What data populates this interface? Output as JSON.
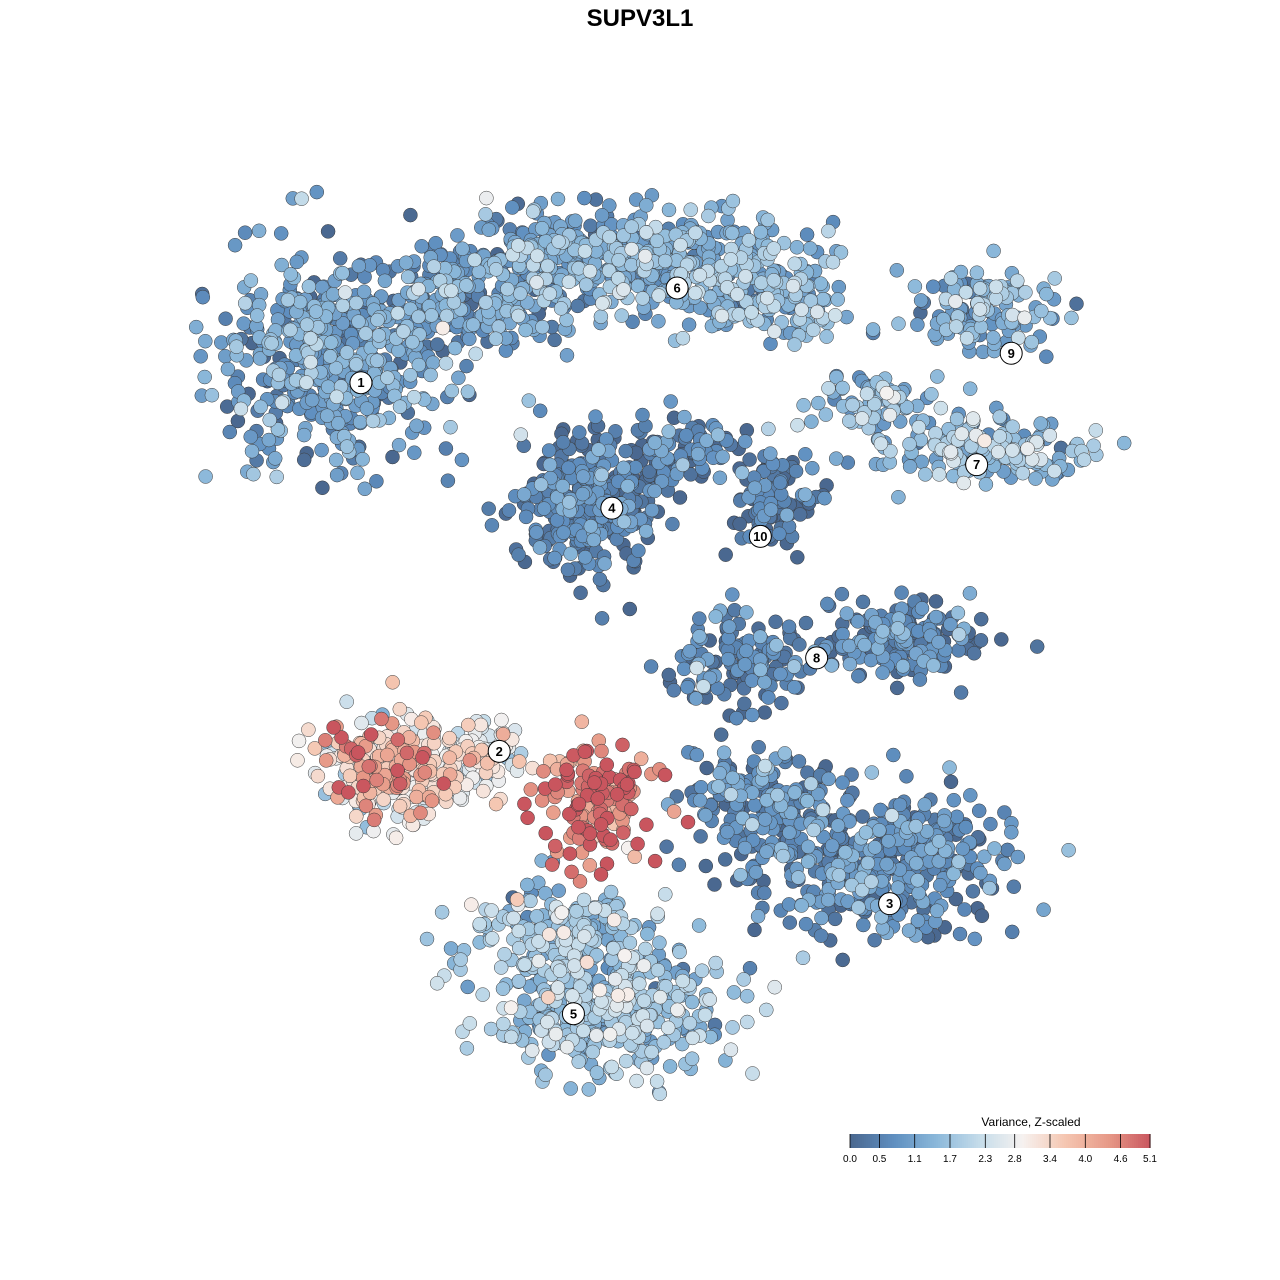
{
  "chart_data": {
    "type": "scatter",
    "title": "SUPV3L1",
    "xlabel": "",
    "ylabel": "",
    "xlim": [
      0,
      1
    ],
    "ylim": [
      0,
      1
    ],
    "grid": false,
    "legend_placement": "bottom-right",
    "colorbar": {
      "title": "Variance, Z-scaled",
      "min": 0.0,
      "max": 5.1,
      "ticks": [
        "0.0",
        "0.5",
        "1.1",
        "1.7",
        "2.3",
        "2.8",
        "3.4",
        "4.0",
        "4.6",
        "5.1"
      ],
      "tick_values": [
        0.0,
        0.5,
        1.1,
        1.7,
        2.3,
        2.8,
        3.4,
        4.0,
        4.6,
        5.1
      ],
      "colors": [
        "#4a6890",
        "#5f8fc0",
        "#8bb8da",
        "#c5dcea",
        "#f6f2f0",
        "#f5c6b1",
        "#e79a88",
        "#c9555e"
      ]
    },
    "clusters": [
      {
        "label": "1",
        "x": 0.282,
        "y": 0.701,
        "mean": 1.0
      },
      {
        "label": "2",
        "x": 0.39,
        "y": 0.413,
        "mean": 2.8
      },
      {
        "label": "3",
        "x": 0.695,
        "y": 0.294,
        "mean": 0.6
      },
      {
        "label": "4",
        "x": 0.478,
        "y": 0.603,
        "mean": 0.4
      },
      {
        "label": "5",
        "x": 0.448,
        "y": 0.208,
        "mean": 1.6
      },
      {
        "label": "6",
        "x": 0.529,
        "y": 0.775,
        "mean": 1.3
      },
      {
        "label": "7",
        "x": 0.763,
        "y": 0.637,
        "mean": 1.5
      },
      {
        "label": "8",
        "x": 0.638,
        "y": 0.486,
        "mean": 0.4
      },
      {
        "label": "9",
        "x": 0.79,
        "y": 0.724,
        "mean": 1.3
      },
      {
        "label": "10",
        "x": 0.594,
        "y": 0.581,
        "mean": 0.2
      }
    ],
    "hotspots": [
      {
        "x": 0.305,
        "y": 0.4,
        "mean": 4.2
      },
      {
        "x": 0.463,
        "y": 0.372,
        "mean": 4.6
      }
    ]
  }
}
